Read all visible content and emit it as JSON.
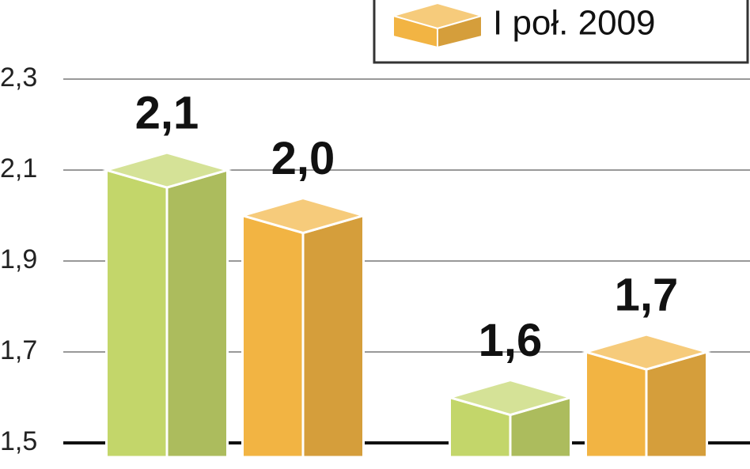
{
  "chart_data": {
    "type": "bar3d",
    "categories": [
      null,
      null
    ],
    "series": [
      {
        "color": "#c3d66a",
        "values": [
          2.1,
          1.6
        ],
        "value_labels": [
          "2,1",
          "1,6"
        ]
      },
      {
        "name": "I poł. 2009",
        "color": "#f2b443",
        "values": [
          2.0,
          1.7
        ],
        "value_labels": [
          "2,0",
          "1,7"
        ]
      }
    ],
    "ylim": [
      1.5,
      2.474
    ],
    "yticks": [
      {
        "value": 1.5,
        "label": "1,5"
      },
      {
        "value": 1.7,
        "label": "1,7"
      },
      {
        "value": 1.9,
        "label": "1,9"
      },
      {
        "value": 2.1,
        "label": "2,1"
      },
      {
        "value": 2.3,
        "label": "2,3"
      }
    ],
    "grid": true
  }
}
